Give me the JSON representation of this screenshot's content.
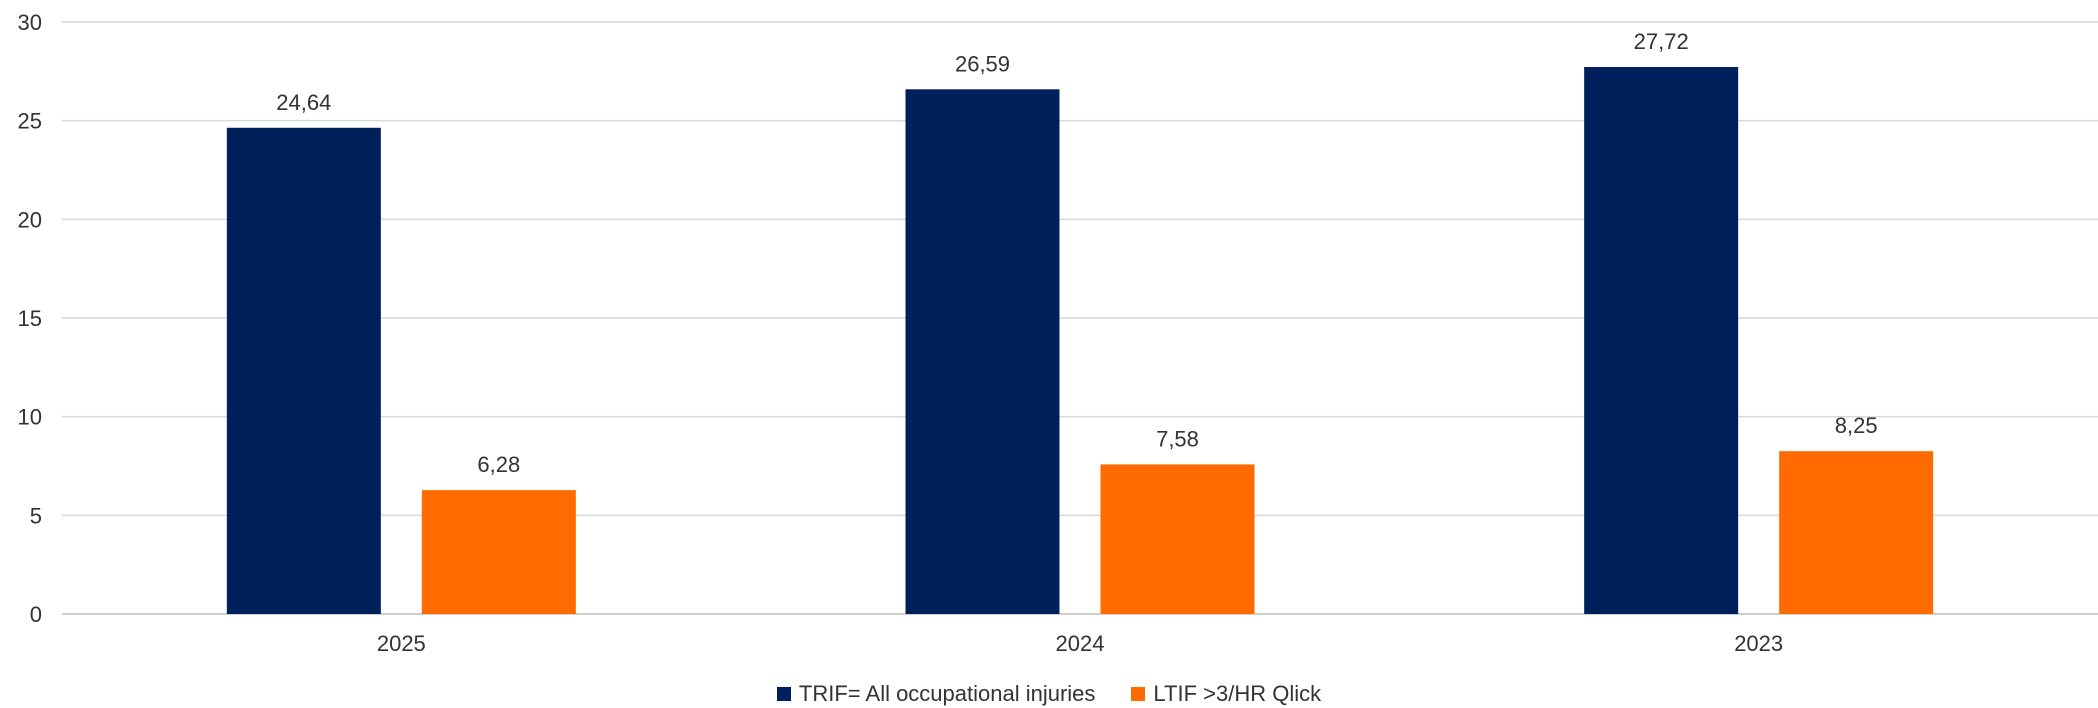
{
  "chart_data": {
    "type": "bar",
    "categories": [
      "2025",
      "2024",
      "2023"
    ],
    "series": [
      {
        "name": "TRIF= All occupational injuries",
        "values": [
          24.64,
          26.59,
          27.72
        ],
        "color": "#00205B"
      },
      {
        "name": "LTIF >3/HR Qlick",
        "values": [
          6.28,
          7.58,
          8.25
        ],
        "color": "#FF6B00"
      }
    ],
    "data_labels": [
      [
        "24,64",
        "26,59",
        "27,72"
      ],
      [
        "6,28",
        "7,58",
        "8,25"
      ]
    ],
    "ylim": [
      0,
      30
    ],
    "yticks": [
      0,
      5,
      10,
      15,
      20,
      25,
      30
    ],
    "grid": true,
    "legend": "bottom-center"
  }
}
